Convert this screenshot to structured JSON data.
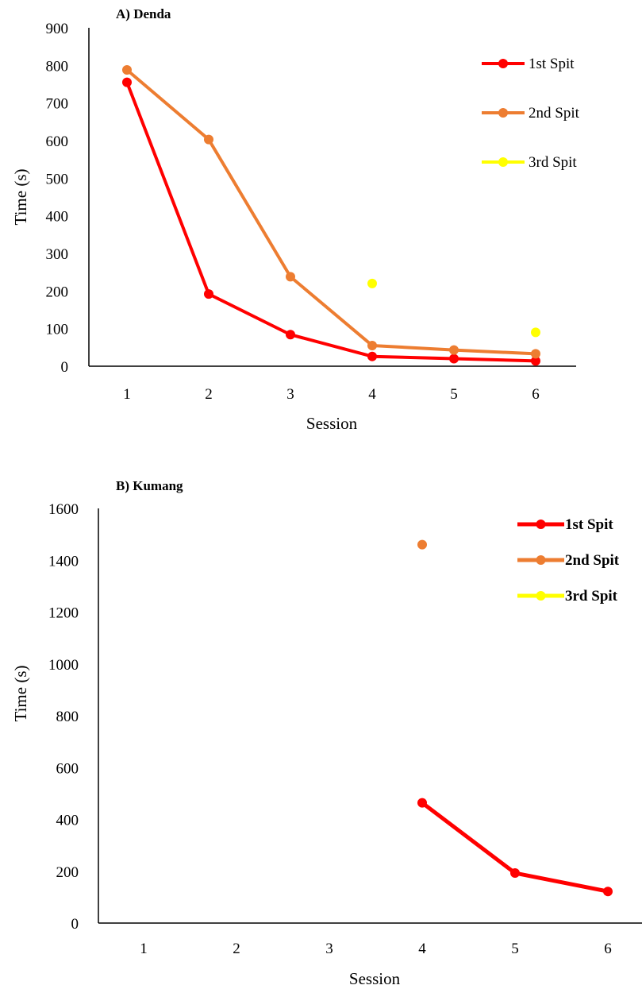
{
  "chart_data": [
    {
      "type": "line",
      "title": "A) Denda",
      "xlabel": "Session",
      "ylabel": "Time (s)",
      "categories": [
        1,
        2,
        3,
        4,
        5,
        6
      ],
      "ylim": [
        0,
        900
      ],
      "yticks": [
        0,
        100,
        200,
        300,
        400,
        500,
        600,
        700,
        800,
        900
      ],
      "legend_position": "top-right",
      "series": [
        {
          "name": "1st Spit",
          "color": "#ff0000",
          "values": [
            755,
            192,
            84,
            26,
            20,
            14
          ]
        },
        {
          "name": "2nd Spit",
          "color": "#ed7d31",
          "values": [
            788,
            603,
            238,
            55,
            43,
            33
          ]
        },
        {
          "name": "3rd Spit",
          "color": "#ffff00",
          "values": [
            null,
            null,
            null,
            220,
            null,
            90
          ]
        }
      ]
    },
    {
      "type": "line",
      "title": "B) Kumang",
      "xlabel": "Session",
      "ylabel": "Time (s)",
      "categories": [
        1,
        2,
        3,
        4,
        5,
        6
      ],
      "ylim": [
        0,
        1600
      ],
      "yticks": [
        0,
        200,
        400,
        600,
        800,
        1000,
        1200,
        1400,
        1600
      ],
      "legend_position": "top-right",
      "series": [
        {
          "name": "1st Spit",
          "color": "#ff0000",
          "values": [
            null,
            null,
            null,
            464,
            193,
            122
          ]
        },
        {
          "name": "2nd Spit",
          "color": "#ed7d31",
          "values": [
            null,
            null,
            null,
            1460,
            null,
            null
          ]
        },
        {
          "name": "3rd Spit",
          "color": "#ffff00",
          "values": [
            null,
            null,
            null,
            null,
            null,
            null
          ]
        }
      ]
    }
  ]
}
